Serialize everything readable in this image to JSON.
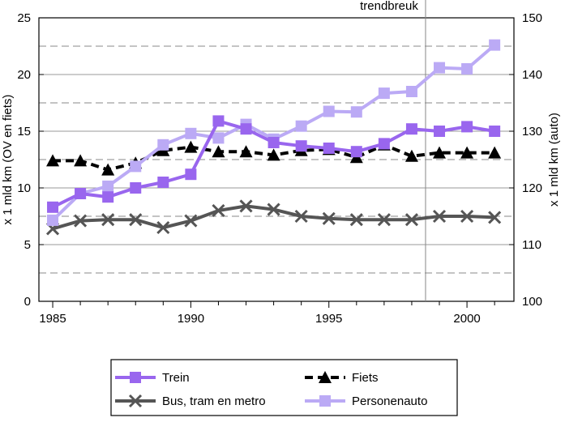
{
  "chart_data": {
    "type": "line",
    "x": [
      1985,
      1986,
      1987,
      1988,
      1989,
      1990,
      1991,
      1992,
      1993,
      1994,
      1995,
      1996,
      1997,
      1998,
      1999,
      2000,
      2001
    ],
    "series": [
      {
        "name": "Trein",
        "axis": "left",
        "color": "#9966ee",
        "marker": "square",
        "dash": "solid",
        "values": [
          8.3,
          9.5,
          9.2,
          10.0,
          10.5,
          11.2,
          15.9,
          15.2,
          14.0,
          13.7,
          13.5,
          13.2,
          13.9,
          15.2,
          15.0,
          15.4,
          15.0
        ]
      },
      {
        "name": "Fiets",
        "axis": "left",
        "color": "#000000",
        "marker": "triangle",
        "dash": "dashed",
        "values": [
          12.4,
          12.4,
          11.6,
          12.2,
          13.3,
          13.6,
          13.2,
          13.2,
          12.9,
          13.3,
          13.4,
          12.7,
          13.8,
          12.8,
          13.1,
          13.1,
          13.1
        ]
      },
      {
        "name": "Bus, tram en metro",
        "axis": "left",
        "color": "#555555",
        "marker": "x",
        "dash": "solid",
        "values": [
          6.4,
          7.1,
          7.2,
          7.2,
          6.5,
          7.1,
          8.0,
          8.4,
          8.1,
          7.5,
          7.3,
          7.2,
          7.2,
          7.2,
          7.5,
          7.5,
          7.4
        ]
      },
      {
        "name": "Personenauto",
        "axis": "right",
        "color": "#bbaaf5",
        "marker": "square",
        "dash": "solid",
        "values": [
          114.3,
          119.0,
          120.3,
          123.8,
          127.6,
          129.6,
          128.8,
          131.2,
          128.6,
          130.9,
          133.5,
          133.4,
          136.7,
          137.0,
          141.2,
          141.0,
          145.2
        ]
      }
    ],
    "ylabel": "x 1 mld km (OV en fiets)",
    "ylabel_right": "x 1 mld km (auto)",
    "ylim": [
      0,
      25
    ],
    "ylim_right": [
      100,
      150
    ],
    "yticks": [
      "0",
      "5",
      "10",
      "15",
      "20",
      "25"
    ],
    "yticks_right": [
      "100",
      "110",
      "120",
      "130",
      "140",
      "150"
    ],
    "xticks": [
      "1985",
      "1990",
      "1995",
      "2000"
    ],
    "xlim": [
      1984.5,
      2001.7
    ],
    "annotation": {
      "text": "trendbreuk",
      "x": 1998.5
    },
    "grid": "horizontal solid at labelled ticks, dashed at midpoints",
    "legend_position": "bottom"
  }
}
